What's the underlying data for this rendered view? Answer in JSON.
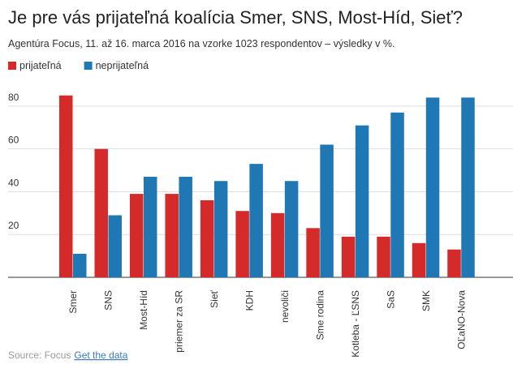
{
  "chart_data": {
    "type": "bar",
    "title": "Je pre vás prijateľná koalícia Smer, SNS, Most-Híd, Sieť?",
    "subtitle": "Agentúra Focus, 11. až 16. marca 2016 na vzorke 1023 respondentov – výsledky v %.",
    "categories": [
      "Smer",
      "SNS",
      "Most-Híd",
      "priemer za SR",
      "Sieť",
      "KDH",
      "nevoliči",
      "Sme rodina",
      "Kotleba - ĽSNS",
      "SaS",
      "SMK",
      "OĽaNO-Nova"
    ],
    "series": [
      {
        "name": "prijateľná",
        "color": "#d52a2a",
        "values": [
          85,
          60,
          39,
          39,
          36,
          31,
          30,
          23,
          19,
          19,
          16,
          13
        ]
      },
      {
        "name": "neprijateľná",
        "color": "#1f77b4",
        "values": [
          11,
          29,
          47,
          47,
          45,
          53,
          45,
          62,
          71,
          77,
          84,
          84
        ]
      }
    ],
    "ylim": [
      0,
      90
    ],
    "yticks": [
      20,
      40,
      60,
      80
    ],
    "grid": true,
    "source": "Source: Focus",
    "source_link": "Get the data"
  }
}
